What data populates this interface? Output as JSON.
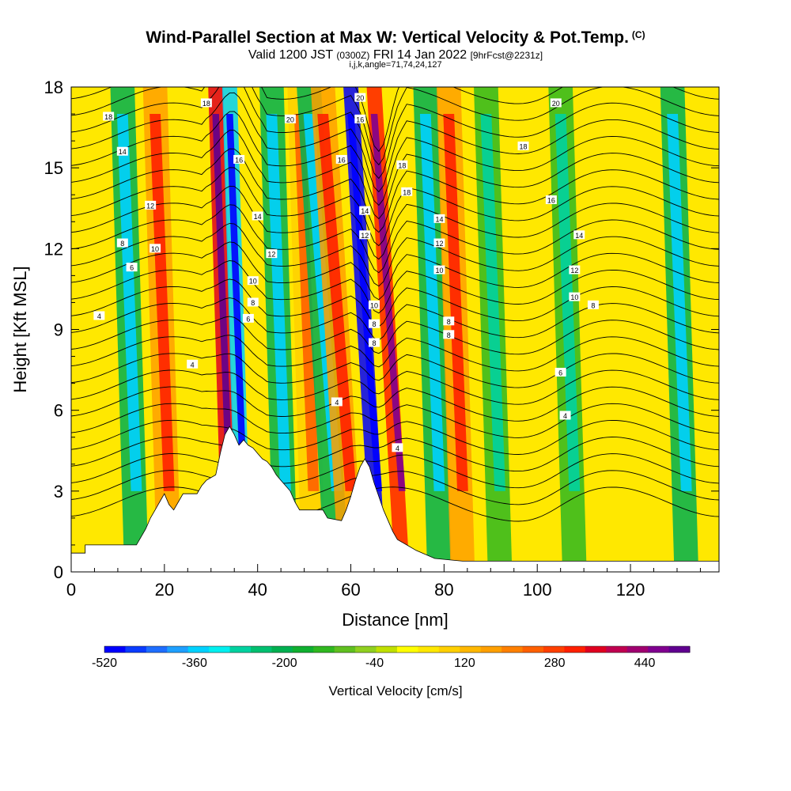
{
  "title": "Wind-Parallel Section at Max W: Vertical Velocity & Pot.Temp.",
  "copyright": "(C)",
  "subtitle": {
    "valid": "Valid 1200 JST",
    "utc": "(0300Z)",
    "date": "FRI 14 Jan 2022",
    "fcst": "[9hrFcst@2231z]"
  },
  "params": "i,j,k,angle=71,74,24,127",
  "chart_data": {
    "type": "heatmap",
    "xlabel": "Distance [nm]",
    "ylabel": "Height [Kft MSL]",
    "xlim": [
      0,
      139
    ],
    "ylim": [
      0,
      18
    ],
    "x_ticks": [
      0,
      20,
      40,
      60,
      80,
      100,
      120
    ],
    "y_ticks": [
      0,
      3,
      6,
      9,
      12,
      15,
      18
    ],
    "colorbar": {
      "label": "Vertical Velocity [cm/s]",
      "range": [
        -520,
        520
      ],
      "step": 40,
      "tick_labels": [
        "-520",
        "-360",
        "-200",
        "-40",
        "120",
        "280",
        "440"
      ],
      "tick_values": [
        -520,
        -360,
        -200,
        -40,
        120,
        280,
        440
      ]
    },
    "updraft_downdraft_bands": [
      {
        "x": 14,
        "w": -200
      },
      {
        "x": 21,
        "w": 200
      },
      {
        "x": 34,
        "w": 400
      },
      {
        "x": 37,
        "w": -360
      },
      {
        "x": 46,
        "w": -200
      },
      {
        "x": 52,
        "w": 120
      },
      {
        "x": 57,
        "w": -200
      },
      {
        "x": 60,
        "w": 200
      },
      {
        "x": 66,
        "w": -520
      },
      {
        "x": 71,
        "w": 360
      },
      {
        "x": 79,
        "w": -200
      },
      {
        "x": 84,
        "w": 200
      },
      {
        "x": 92,
        "w": -120
      },
      {
        "x": 108,
        "w": -120
      },
      {
        "x": 120,
        "w": 80
      },
      {
        "x": 132,
        "w": -200
      }
    ],
    "terrain": [
      [
        0,
        0.7
      ],
      [
        3,
        0.7
      ],
      [
        3,
        1.0
      ],
      [
        14,
        1.0
      ],
      [
        15,
        1.3
      ],
      [
        16,
        1.6
      ],
      [
        17,
        2.0
      ],
      [
        18,
        2.3
      ],
      [
        19,
        2.6
      ],
      [
        20,
        2.9
      ],
      [
        21,
        2.5
      ],
      [
        22,
        2.3
      ],
      [
        23,
        2.6
      ],
      [
        24,
        2.9
      ],
      [
        27,
        2.9
      ],
      [
        28,
        3.2
      ],
      [
        29,
        3.4
      ],
      [
        31,
        3.6
      ],
      [
        32,
        4.4
      ],
      [
        33,
        5.1
      ],
      [
        34,
        5.4
      ],
      [
        35,
        5.1
      ],
      [
        36,
        4.7
      ],
      [
        37,
        4.9
      ],
      [
        38,
        4.7
      ],
      [
        39,
        4.6
      ],
      [
        40,
        4.4
      ],
      [
        41,
        4.2
      ],
      [
        42,
        4.1
      ],
      [
        43,
        3.9
      ],
      [
        44,
        3.6
      ],
      [
        45,
        3.4
      ],
      [
        46,
        3.2
      ],
      [
        47,
        3.0
      ],
      [
        48,
        2.6
      ],
      [
        49,
        2.3
      ],
      [
        54,
        2.3
      ],
      [
        55,
        2.0
      ],
      [
        58,
        1.9
      ],
      [
        59,
        2.3
      ],
      [
        60,
        2.8
      ],
      [
        61,
        3.4
      ],
      [
        62,
        3.9
      ],
      [
        63,
        4.2
      ],
      [
        64,
        3.9
      ],
      [
        65,
        3.3
      ],
      [
        66,
        2.8
      ],
      [
        67,
        2.3
      ],
      [
        68,
        1.9
      ],
      [
        69,
        1.5
      ],
      [
        70,
        1.2
      ],
      [
        72,
        1.0
      ],
      [
        74,
        0.8
      ],
      [
        78,
        0.5
      ],
      [
        84,
        0.4
      ],
      [
        139,
        0.4
      ]
    ],
    "theta_labels": [
      {
        "text": "18",
        "x": 8,
        "y": 16.9
      },
      {
        "text": "18",
        "x": 29,
        "y": 17.4
      },
      {
        "text": "14",
        "x": 11,
        "y": 15.6
      },
      {
        "text": "20",
        "x": 47,
        "y": 16.8
      },
      {
        "text": "20",
        "x": 62,
        "y": 17.6
      },
      {
        "text": "16",
        "x": 62,
        "y": 16.8
      },
      {
        "text": "16",
        "x": 36,
        "y": 15.3
      },
      {
        "text": "16",
        "x": 58,
        "y": 15.3
      },
      {
        "text": "18",
        "x": 71,
        "y": 15.1
      },
      {
        "text": "18",
        "x": 72,
        "y": 14.1
      },
      {
        "text": "20",
        "x": 104,
        "y": 17.4
      },
      {
        "text": "18",
        "x": 97,
        "y": 15.8
      },
      {
        "text": "16",
        "x": 103,
        "y": 13.8
      },
      {
        "text": "12",
        "x": 17,
        "y": 13.6
      },
      {
        "text": "14",
        "x": 40,
        "y": 13.2
      },
      {
        "text": "14",
        "x": 63,
        "y": 13.4
      },
      {
        "text": "14",
        "x": 79,
        "y": 13.1
      },
      {
        "text": "12",
        "x": 63,
        "y": 12.5
      },
      {
        "text": "8",
        "x": 11,
        "y": 12.2
      },
      {
        "text": "10",
        "x": 18,
        "y": 12.0
      },
      {
        "text": "12",
        "x": 43,
        "y": 11.8
      },
      {
        "text": "12",
        "x": 79,
        "y": 12.2
      },
      {
        "text": "14",
        "x": 109,
        "y": 12.5
      },
      {
        "text": "6",
        "x": 13,
        "y": 11.3
      },
      {
        "text": "10",
        "x": 39,
        "y": 10.8
      },
      {
        "text": "10",
        "x": 79,
        "y": 11.2
      },
      {
        "text": "12",
        "x": 108,
        "y": 11.2
      },
      {
        "text": "8",
        "x": 39,
        "y": 10.0
      },
      {
        "text": "10",
        "x": 65,
        "y": 9.9
      },
      {
        "text": "10",
        "x": 108,
        "y": 10.2
      },
      {
        "text": "8",
        "x": 112,
        "y": 9.9
      },
      {
        "text": "4",
        "x": 6,
        "y": 9.5
      },
      {
        "text": "6",
        "x": 38,
        "y": 9.4
      },
      {
        "text": "8",
        "x": 65,
        "y": 9.2
      },
      {
        "text": "8",
        "x": 81,
        "y": 9.3
      },
      {
        "text": "8",
        "x": 81,
        "y": 8.8
      },
      {
        "text": "8",
        "x": 65,
        "y": 8.5
      },
      {
        "text": "4",
        "x": 26,
        "y": 7.7
      },
      {
        "text": "6",
        "x": 105,
        "y": 7.4
      },
      {
        "text": "4",
        "x": 57,
        "y": 6.3
      },
      {
        "text": "4",
        "x": 106,
        "y": 5.8
      },
      {
        "text": "4",
        "x": 70,
        "y": 4.6
      }
    ]
  }
}
